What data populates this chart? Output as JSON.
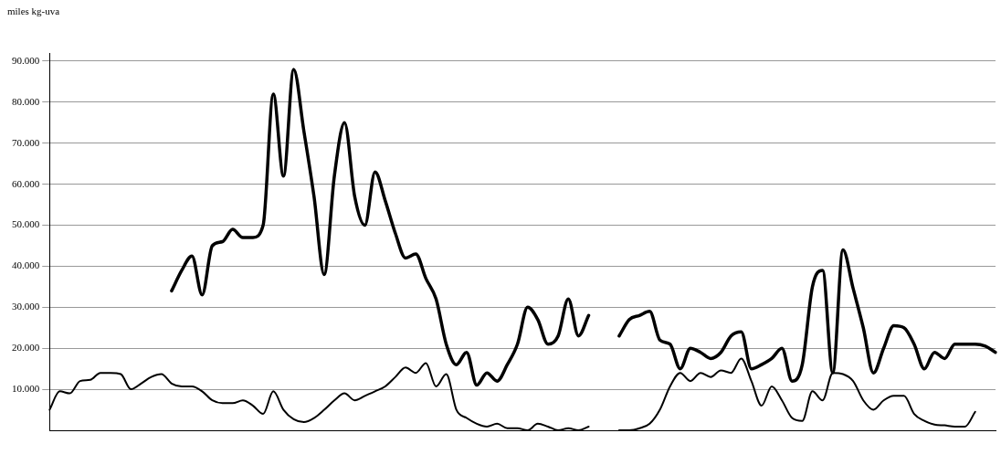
{
  "chart_data": {
    "type": "line",
    "ylabel": "miles kg-uva",
    "categories": [
      null,
      null,
      null,
      null,
      null,
      null,
      null,
      null,
      null,
      null,
      null,
      null,
      null,
      null,
      null,
      null,
      null,
      null,
      null,
      null,
      null,
      null,
      null,
      null,
      null,
      null,
      null,
      null,
      null,
      null,
      null,
      null,
      null,
      null,
      null,
      null,
      null,
      null,
      null,
      null,
      null,
      null,
      null,
      null,
      null,
      null,
      null,
      null,
      null,
      null,
      null,
      null,
      null,
      null,
      null,
      null,
      null,
      null,
      null,
      null,
      null,
      null,
      null,
      null,
      null,
      null,
      null,
      null,
      null,
      null,
      null,
      null,
      null,
      null,
      null,
      null,
      null,
      null,
      null,
      null,
      null,
      null,
      null,
      null,
      null,
      null,
      null,
      null,
      null,
      null,
      null,
      null,
      null,
      null
    ],
    "series": [
      {
        "color": "#000000",
        "values": [
          null,
          null,
          null,
          null,
          null,
          null,
          null,
          null,
          null,
          null,
          null,
          null,
          34000,
          39000,
          42500,
          33000,
          45000,
          46000,
          49000,
          47000,
          47000,
          50000,
          82000,
          62000,
          88000,
          73000,
          57000,
          38000,
          62000,
          75000,
          57000,
          50000,
          63000,
          56000,
          48000,
          42000,
          43000,
          37000,
          32000,
          21000,
          16000,
          19000,
          11000,
          14000,
          12000,
          16000,
          21000,
          30000,
          27000,
          21000,
          23000,
          32000,
          23000,
          28000,
          null,
          null,
          null,
          null,
          null,
          null,
          null,
          null,
          null,
          null,
          null,
          null,
          null,
          null,
          null,
          null,
          null,
          null,
          null,
          null,
          null,
          null,
          null,
          null,
          null,
          null,
          null,
          null,
          null,
          null,
          null,
          null,
          null,
          null,
          null,
          null,
          null,
          null,
          null,
          null
        ]
      },
      {
        "color": "#000000",
        "values": [
          null,
          null,
          null,
          null,
          null,
          null,
          null,
          null,
          null,
          null,
          null,
          null,
          null,
          null,
          null,
          null,
          null,
          null,
          null,
          null,
          null,
          null,
          null,
          null,
          null,
          null,
          null,
          null,
          null,
          null,
          null,
          null,
          null,
          null,
          null,
          null,
          null,
          null,
          null,
          null,
          null,
          null,
          null,
          null,
          null,
          null,
          null,
          null,
          null,
          null,
          null,
          null,
          null,
          null,
          null,
          null,
          23000,
          27000,
          28000,
          29000,
          22000,
          21000,
          15000,
          20000,
          19000,
          17500,
          19000,
          23000,
          24000,
          15000,
          16000,
          17500,
          20000,
          12000,
          16000,
          35000,
          39000,
          14000,
          44000,
          34600,
          25000,
          14000,
          20000,
          25500,
          25000,
          21000,
          15000,
          19000,
          17500,
          21000,
          21000,
          21000,
          20500,
          19000
        ]
      },
      {
        "color": "#000000",
        "values": [
          5000,
          9500,
          9000,
          12000,
          12300,
          14000,
          14000,
          13700,
          10000,
          11400,
          13000,
          13700,
          11400,
          10700,
          10700,
          9500,
          7300,
          6600,
          6600,
          7300,
          6000,
          4000,
          9500,
          5000,
          2700,
          2000,
          3000,
          5000,
          7300,
          9000,
          7300,
          8400,
          9500,
          10700,
          13000,
          15300,
          14000,
          16400,
          10700,
          13700,
          5000,
          3000,
          1600,
          900,
          1600,
          500,
          500,
          0,
          1600,
          900,
          0,
          500,
          0,
          900,
          null,
          null,
          null,
          null,
          null,
          null,
          null,
          null,
          null,
          null,
          null,
          null,
          null,
          null,
          null,
          null,
          null,
          null,
          null,
          null,
          null,
          null,
          null,
          null,
          null,
          null,
          null,
          null,
          null,
          null,
          null,
          null,
          null,
          null,
          null,
          null,
          null,
          null,
          null,
          null
        ]
      },
      {
        "color": "#000000",
        "values": [
          null,
          null,
          null,
          null,
          null,
          null,
          null,
          null,
          null,
          null,
          null,
          null,
          null,
          null,
          null,
          null,
          null,
          null,
          null,
          null,
          null,
          null,
          null,
          null,
          null,
          null,
          null,
          null,
          null,
          null,
          null,
          null,
          null,
          null,
          null,
          null,
          null,
          null,
          null,
          null,
          null,
          null,
          null,
          null,
          null,
          null,
          null,
          null,
          null,
          null,
          null,
          null,
          null,
          null,
          null,
          null,
          0,
          0,
          500,
          1600,
          5000,
          10700,
          14000,
          12000,
          14000,
          13000,
          14600,
          14000,
          17500,
          12000,
          6000,
          10700,
          7300,
          3000,
          2300,
          9500,
          7300,
          14000,
          13700,
          12000,
          7300,
          5000,
          7300,
          8400,
          8400,
          4000,
          2300,
          1400,
          1200,
          900,
          900,
          4500,
          null,
          null
        ]
      }
    ],
    "ylim": [
      0,
      92000
    ],
    "yticks": [
      {
        "value": 10000,
        "label": "10.000"
      },
      {
        "value": 20000,
        "label": "20.000"
      },
      {
        "value": 30000,
        "label": "30.000"
      },
      {
        "value": 40000,
        "label": "40.000"
      },
      {
        "value": 50000,
        "label": "50.000"
      },
      {
        "value": 60000,
        "label": "60.000"
      },
      {
        "value": 70000,
        "label": "70.000"
      },
      {
        "value": 80000,
        "label": "80.000"
      },
      {
        "value": 90000,
        "label": "90.000"
      }
    ],
    "grid": "y",
    "legend": false,
    "tick_labels": "y",
    "marker": "none",
    "line_style": "solid"
  }
}
